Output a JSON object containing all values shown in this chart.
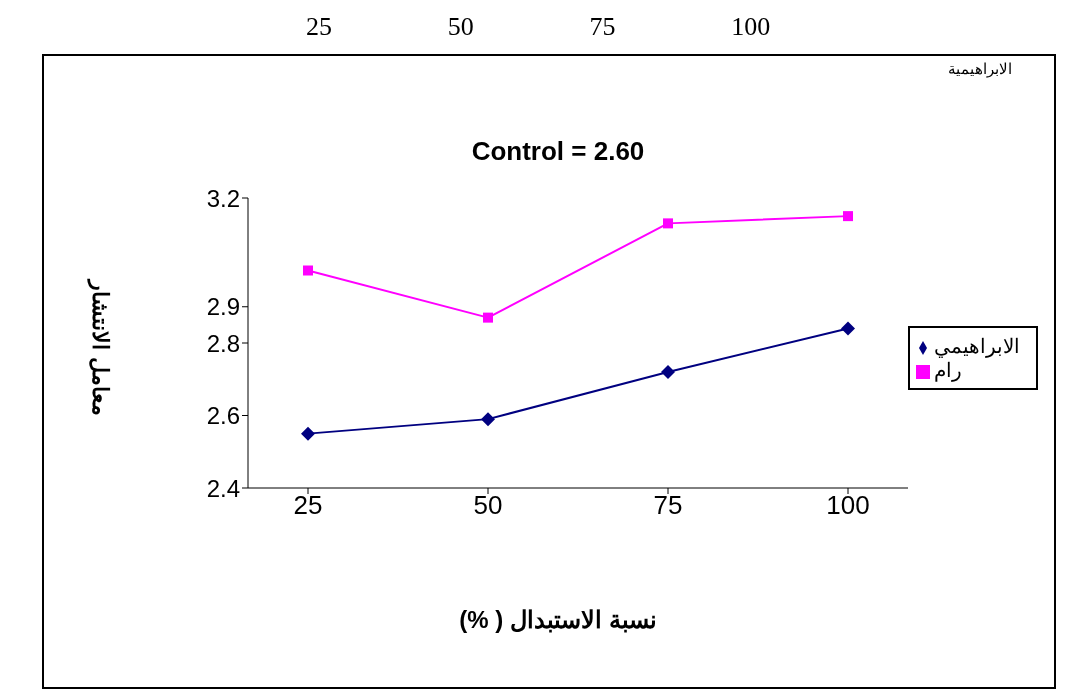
{
  "chart_data": {
    "type": "line",
    "title": "Control = 2.60",
    "xlabel": "نسبة الاستبدال ( %)",
    "ylabel": "معامل الانتشار",
    "annotations": [
      "25",
      "50",
      "75",
      "100",
      "الابراهيمية"
    ],
    "categories": [
      "25",
      "50",
      "75",
      "100"
    ],
    "series": [
      {
        "name": "رام",
        "color": "#ff00ff",
        "marker": "square",
        "values": [
          3.0,
          2.87,
          3.13,
          3.15
        ]
      },
      {
        "name": "الابراهيمي",
        "color": "#000080",
        "marker": "diamond",
        "values": [
          2.55,
          2.59,
          2.72,
          2.84
        ]
      }
    ],
    "ylim": [
      2.4,
      3.2
    ],
    "yticks": [
      2.4,
      2.6,
      2.8,
      2.9,
      3.2
    ],
    "grid": false,
    "legend": "right",
    "line_style": "solid"
  }
}
